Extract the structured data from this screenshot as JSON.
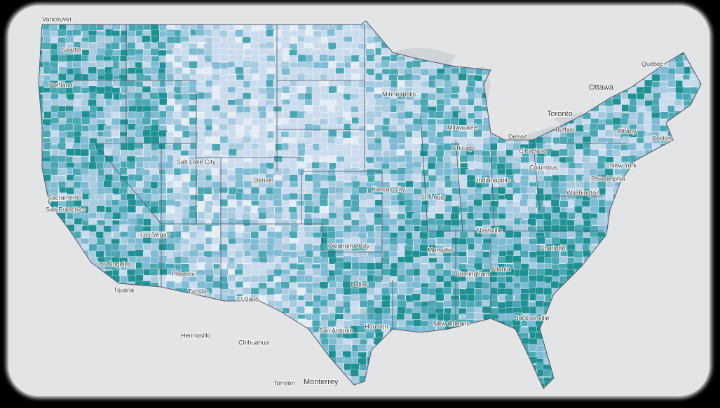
{
  "labels": [
    "Vancouver",
    "Seattle",
    "Portland",
    "Sacramento",
    "San Francisco",
    "Los Angeles",
    "Tijuana",
    "Las Vegas",
    "Phoenix",
    "Tucson",
    "Salt Lake City",
    "Denver",
    "El Paso",
    "Hermosillo",
    "Chihuahua",
    "Torreón",
    "Monterrey",
    "San Antonio",
    "Houston",
    "Dallas",
    "Oklahoma City",
    "Kansas City",
    "Minneapolis",
    "Milwaukee",
    "Chicago",
    "Detroit",
    "Toronto",
    "Ottawa",
    "Québec",
    "Boston",
    "New York",
    "Philadelphia",
    "Washington",
    "Atlanta",
    "Jacksonville",
    "New Orleans",
    "Memphis",
    "Nashville",
    "Indianapolis",
    "Columbus",
    "Cleveland",
    "St. Louis",
    "Birmingham",
    "Charlotte",
    "Albany",
    "Buffalo"
  ]
}
